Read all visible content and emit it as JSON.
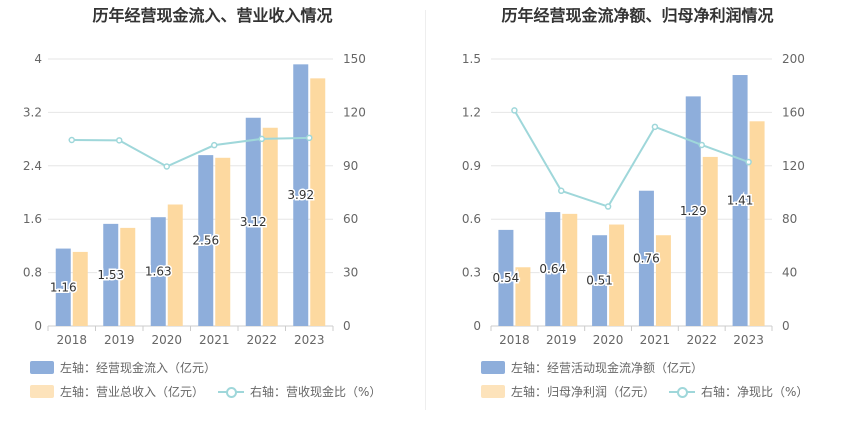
{
  "charts": [
    {
      "title": "历年经营现金流入、营业收入情况",
      "legend": {
        "bar1": "左轴：经营现金流入（亿元）",
        "bar2": "左轴：营业总收入（亿元）",
        "line": "右轴：营收现金比（%）"
      }
    },
    {
      "title": "历年经营现金流净额、归母净利润情况",
      "legend": {
        "bar1": "左轴：经营活动现金流净额（亿元）",
        "bar2": "左轴：归母净利润（亿元）",
        "line": "右轴：净现比（%）"
      }
    }
  ],
  "colors": {
    "bar1": "#8eaedb",
    "bar2": "#fdd9a0",
    "line": "#9fd7da",
    "grid": "#e6e6e6",
    "axis_text": "#666666"
  },
  "chart_data": [
    {
      "type": "bar",
      "title": "历年经营现金流入、营业收入情况",
      "categories": [
        "2018",
        "2019",
        "2020",
        "2021",
        "2022",
        "2023"
      ],
      "y_left": {
        "min": 0,
        "max": 4,
        "ticks": [
          "0",
          "0.8",
          "1.6",
          "2.4",
          "3.2",
          "4"
        ]
      },
      "y_right": {
        "min": 0,
        "max": 150,
        "ticks": [
          "0",
          "30",
          "60",
          "90",
          "120",
          "150"
        ]
      },
      "series": [
        {
          "name": "左轴：经营现金流入（亿元）",
          "axis": "left",
          "type": "bar",
          "values": [
            1.16,
            1.53,
            1.63,
            2.56,
            3.12,
            3.92
          ],
          "labels": [
            "1.16",
            "1.53",
            "1.63",
            "2.56",
            "3.12",
            "3.92"
          ]
        },
        {
          "name": "左轴：营业总收入（亿元）",
          "axis": "left",
          "type": "bar",
          "values": [
            1.11,
            1.47,
            1.82,
            2.52,
            2.97,
            3.71
          ]
        },
        {
          "name": "右轴：营收现金比（%）",
          "axis": "right",
          "type": "line",
          "values": [
            104.5,
            104.3,
            89.6,
            101.6,
            105.1,
            105.7
          ]
        }
      ]
    },
    {
      "type": "bar",
      "title": "历年经营现金流净额、归母净利润情况",
      "categories": [
        "2018",
        "2019",
        "2020",
        "2021",
        "2022",
        "2023"
      ],
      "y_left": {
        "min": 0,
        "max": 1.5,
        "ticks": [
          "0",
          "0.3",
          "0.6",
          "0.9",
          "1.2",
          "1.5"
        ]
      },
      "y_right": {
        "min": 0,
        "max": 200,
        "ticks": [
          "0",
          "40",
          "80",
          "120",
          "160",
          "200"
        ]
      },
      "series": [
        {
          "name": "左轴：经营活动现金流净额（亿元）",
          "axis": "left",
          "type": "bar",
          "values": [
            0.54,
            0.64,
            0.51,
            0.76,
            1.29,
            1.41
          ],
          "labels": [
            "0.54",
            "0.64",
            "0.51",
            "0.76",
            "1.29",
            "1.41"
          ]
        },
        {
          "name": "左轴：归母净利润（亿元）",
          "axis": "left",
          "type": "bar",
          "values": [
            0.33,
            0.63,
            0.57,
            0.51,
            0.95,
            1.15
          ]
        },
        {
          "name": "右轴：净现比（%）",
          "axis": "right",
          "type": "line",
          "values": [
            161.5,
            101.3,
            89.5,
            149.2,
            135.6,
            122.8
          ]
        }
      ]
    }
  ]
}
